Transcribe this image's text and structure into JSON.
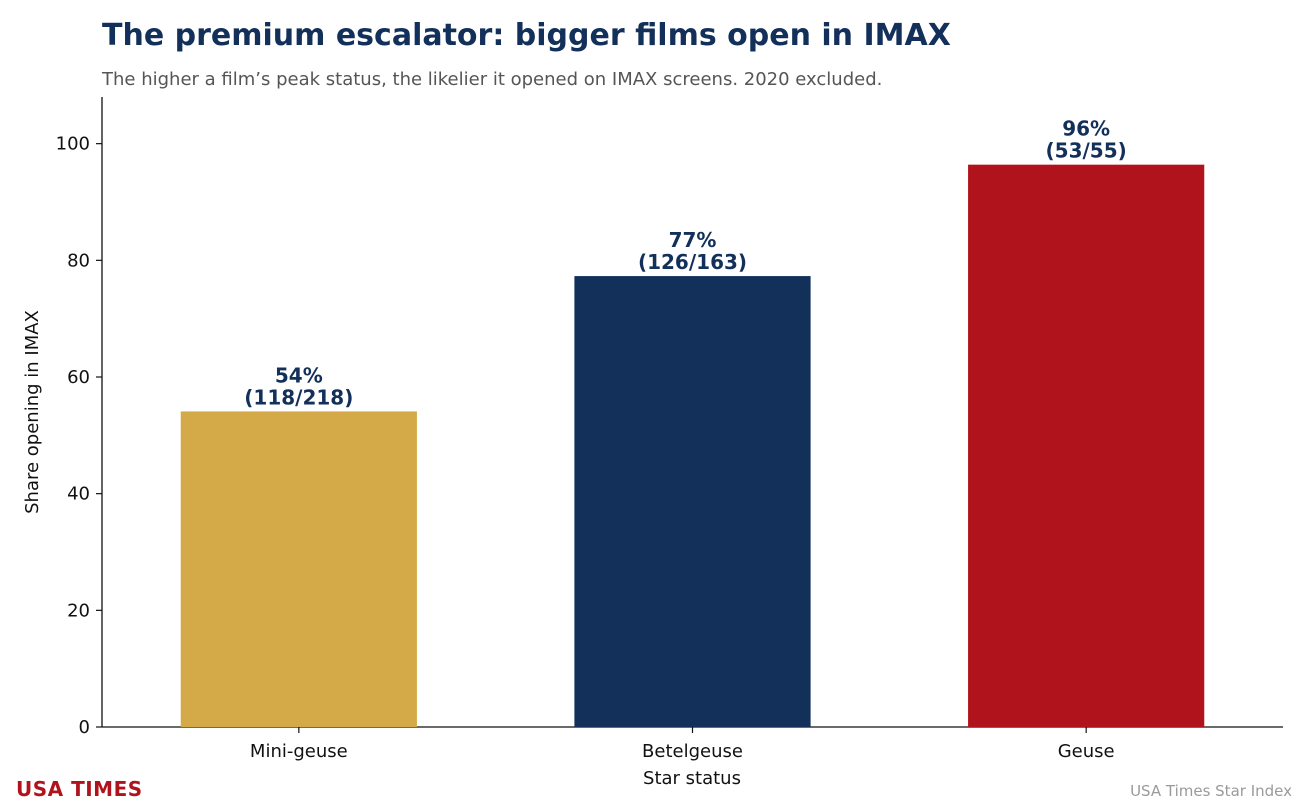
{
  "chart_data": {
    "type": "bar",
    "title": "The premium escalator: bigger films open in IMAX",
    "subtitle": "The higher a film’s peak status, the likelier it opened on IMAX screens. 2020 excluded.",
    "xlabel": "Star status",
    "ylabel": "Share opening in IMAX",
    "categories": [
      "Mini-geuse",
      "Betelgeuse",
      "Geuse"
    ],
    "values": [
      54.1,
      77.3,
      96.4
    ],
    "data_labels": [
      "54%\n(118/218)",
      "77%\n(126/163)",
      "96%\n(53/55)"
    ],
    "colors": [
      "#d4aa48",
      "#13305a",
      "#b0131c"
    ],
    "ylim": [
      0,
      108
    ],
    "yticks": [
      0,
      20,
      40,
      60,
      80,
      100
    ],
    "grid": false,
    "legend": "none"
  },
  "branding": {
    "publisher": "USA TIMES",
    "publisher_color": "#b0131c",
    "source": "USA Times Star Index"
  }
}
